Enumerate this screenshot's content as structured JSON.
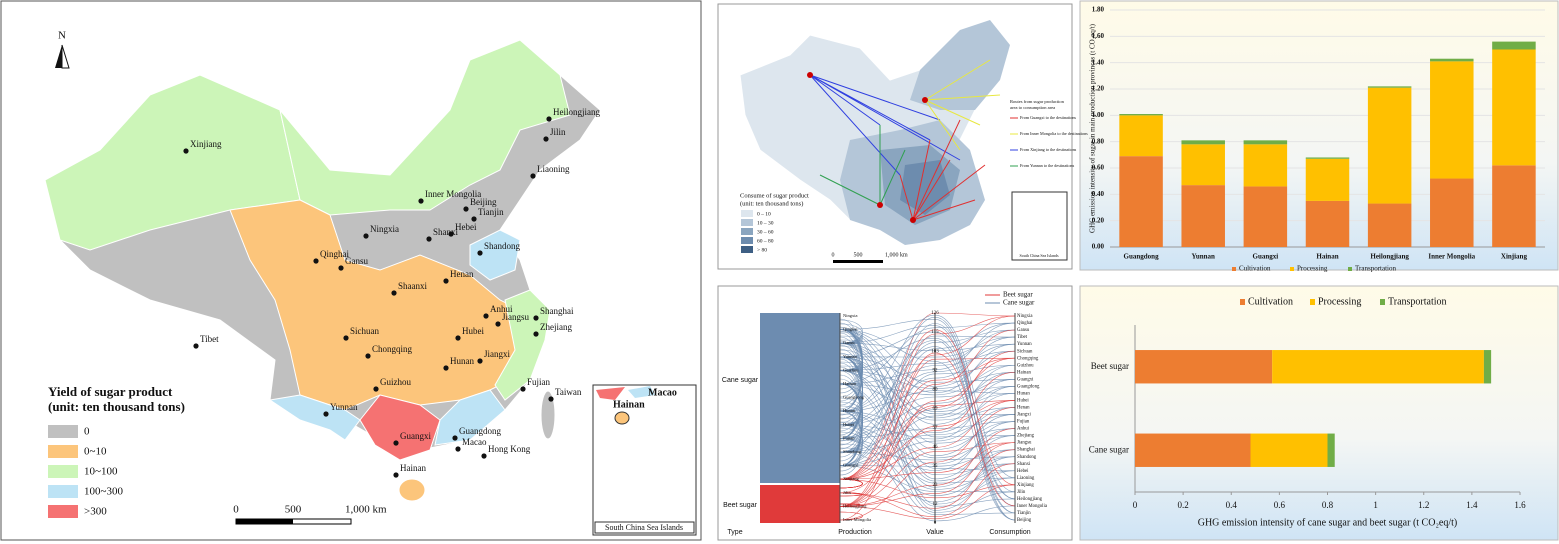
{
  "province_map": {
    "north": "N",
    "provinces": [
      "Heilongjiang",
      "Jilin",
      "Liaoning",
      "Xinjiang",
      "Inner Mongolia",
      "Beijing",
      "Tianjin",
      "Hebei",
      "Shanxi",
      "Ningxia",
      "Shandong",
      "Qinghai",
      "Gansu",
      "Henan",
      "Shaanxi",
      "Tibet",
      "Anhui",
      "Jiangsu",
      "Shanghai",
      "Zhejiang",
      "Sichuan",
      "Chongqing",
      "Hubei",
      "Hunan",
      "Jiangxi",
      "Guizhou",
      "Fujian",
      "Taiwan",
      "Yunnan",
      "Guangxi",
      "Guangdong",
      "Macao",
      "Hong Kong",
      "Hainan"
    ],
    "inset_labels": [
      "Macao",
      "Hainan"
    ],
    "inset_title": "South China Sea Islands",
    "legend_title": [
      "Yield of sugar product",
      "(unit: ten thousand tons)"
    ],
    "legend": [
      {
        "label": "0",
        "color": "#c0c0c0"
      },
      {
        "label": "0~10",
        "color": "#fcc57b"
      },
      {
        "label": "10~100",
        "color": "#ccf5b8"
      },
      {
        "label": "100~300",
        "color": "#bde3f5"
      },
      {
        "label": ">300",
        "color": "#f57272"
      }
    ],
    "scale": [
      "0",
      "500",
      "1,000 km"
    ]
  },
  "route_map": {
    "legend_title": [
      "Consume of sugar product",
      "(unit: ten thousand tons)"
    ],
    "legend": [
      "0 – 10",
      "10 – 30",
      "30 – 60",
      "60 – 80",
      "> 80"
    ],
    "routes_title": [
      "Routes from sugar production",
      "area to consumption area"
    ],
    "routes": [
      {
        "label": "From Guangxi to the destinations",
        "color": "#e03030"
      },
      {
        "label": "From Inner Mongolia to the destinations",
        "color": "#e8e840"
      },
      {
        "label": "From Xinjiang to the destinations",
        "color": "#3040e0"
      },
      {
        "label": "From Yunnan to the destinations",
        "color": "#30a050"
      }
    ],
    "scale": [
      "0",
      "500",
      "1,000 km"
    ],
    "inset_title": "South China Sea Islands"
  },
  "flow_diagram": {
    "axes": [
      "Type",
      "Production",
      "Value",
      "Consumption"
    ],
    "legend": [
      {
        "label": "Beet sugar",
        "color": "#e03a3a"
      },
      {
        "label": "Cane sugar",
        "color": "#6d8cb0"
      }
    ],
    "types": [
      "Cane sugar",
      "Beet sugar"
    ],
    "production": [
      "Ningxia",
      "Qinghai",
      "Gansu",
      "Yunnan",
      "Guizhou",
      "Hainan",
      "Guangdong",
      "Hunan",
      "Hubei",
      "Fujian",
      "Shandong",
      "Guangxi",
      "Xinjiang",
      "Jilin",
      "Heilongjiang",
      "Inner Mongolia"
    ],
    "value_ticks": [
      "126",
      "115",
      "103",
      "92",
      "80",
      "69",
      "57",
      "46",
      "35",
      "23",
      "12",
      "0"
    ],
    "consumption": [
      "Ningxia",
      "Qinghai",
      "Gansu",
      "Tibet",
      "Yunnan",
      "Sichuan",
      "Chongqing",
      "Guizhou",
      "Hainan",
      "Guangxi",
      "Guangdong",
      "Hunan",
      "Hubei",
      "Henan",
      "Jiangxi",
      "Fujian",
      "Anhui",
      "Zhejiang",
      "Jiangsu",
      "Shanghai",
      "Shandong",
      "Shanxi",
      "Hebei",
      "Liaoning",
      "Xinjiang",
      "Jilin",
      "Heilongjiang",
      "Inner Mongolia",
      "Tianjin",
      "Beijing"
    ]
  },
  "chart_data": [
    {
      "type": "stacked_bar",
      "ylabel": "GHG emission intensity of sugar in main production provinces (t CO₂eq/t)",
      "categories": [
        "Guangdong",
        "Yunnan",
        "Guangxi",
        "Hainan",
        "Heilongjiang",
        "Inner Mongolia",
        "Xinjiang"
      ],
      "series": [
        {
          "name": "Cultivation",
          "color": "#ed7d31",
          "values": [
            0.69,
            0.47,
            0.46,
            0.35,
            0.33,
            0.52,
            0.62
          ]
        },
        {
          "name": "Processing",
          "color": "#ffc000",
          "values": [
            0.31,
            0.31,
            0.32,
            0.32,
            0.88,
            0.89,
            0.88
          ]
        },
        {
          "name": "Transportation",
          "color": "#70ad47",
          "values": [
            0.01,
            0.03,
            0.03,
            0.01,
            0.01,
            0.02,
            0.06
          ]
        }
      ],
      "ylim": [
        0,
        1.8
      ],
      "yticks": [
        {
          "value": 0,
          "label": "0.00"
        },
        {
          "value": 0.2,
          "label": "0.20"
        },
        {
          "value": 0.4,
          "label": "0.40"
        },
        {
          "value": 0.6,
          "label": "0.60"
        },
        {
          "value": 0.8,
          "label": "0.80"
        },
        {
          "value": 1,
          "label": "1.00"
        },
        {
          "value": 1.2,
          "label": "1.20"
        },
        {
          "value": 1.4,
          "label": "1.40"
        },
        {
          "value": 1.6,
          "label": "1.60"
        },
        {
          "value": 1.8,
          "label": "1.80"
        }
      ],
      "legend": "bottom"
    },
    {
      "type": "stacked_barh",
      "xlabel": "GHG emission intensity of cane sugar and beet sugar (t CO₂eq/t)",
      "categories": [
        "Beet sugar",
        "Cane sugar"
      ],
      "series": [
        {
          "name": "Cultivation",
          "color": "#ed7d31",
          "values": [
            0.57,
            0.48
          ]
        },
        {
          "name": "Processing",
          "color": "#ffc000",
          "values": [
            0.88,
            0.32
          ]
        },
        {
          "name": "Transportation",
          "color": "#70ad47",
          "values": [
            0.03,
            0.03
          ]
        }
      ],
      "xlim": [
        0,
        1.6
      ],
      "xticks": [
        0,
        0.2,
        0.4,
        0.6,
        0.8,
        1,
        1.2,
        1.4,
        1.6
      ],
      "legend": "top"
    }
  ]
}
